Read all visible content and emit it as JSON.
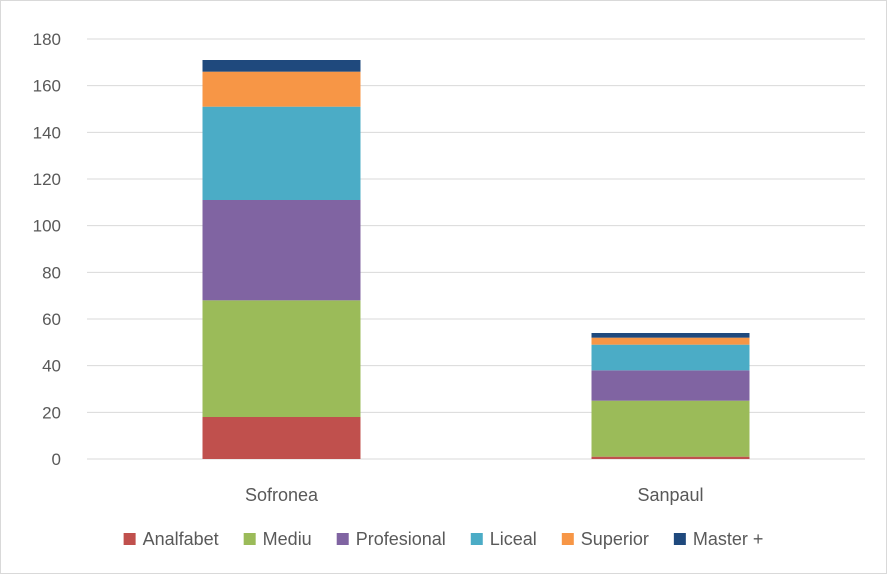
{
  "chart_data": {
    "type": "bar",
    "stacked": true,
    "categories": [
      "Sofronea",
      "Sanpaul"
    ],
    "series": [
      {
        "name": "Analfabet",
        "color": "#c0504d",
        "values": [
          18,
          1
        ]
      },
      {
        "name": "Mediu",
        "color": "#9bbb59",
        "values": [
          50,
          24
        ]
      },
      {
        "name": "Profesional",
        "color": "#8064a2",
        "values": [
          43,
          13
        ]
      },
      {
        "name": "Liceal",
        "color": "#4bacc6",
        "values": [
          40,
          11
        ]
      },
      {
        "name": "Superior",
        "color": "#f79646",
        "values": [
          15,
          3
        ]
      },
      {
        "name": "Master +",
        "color": "#1f497d",
        "values": [
          5,
          2
        ]
      }
    ],
    "ylim": [
      0,
      180
    ],
    "yticks": [
      0,
      20,
      40,
      60,
      80,
      100,
      120,
      140,
      160,
      180
    ],
    "grid": true,
    "legend": "bottom"
  }
}
